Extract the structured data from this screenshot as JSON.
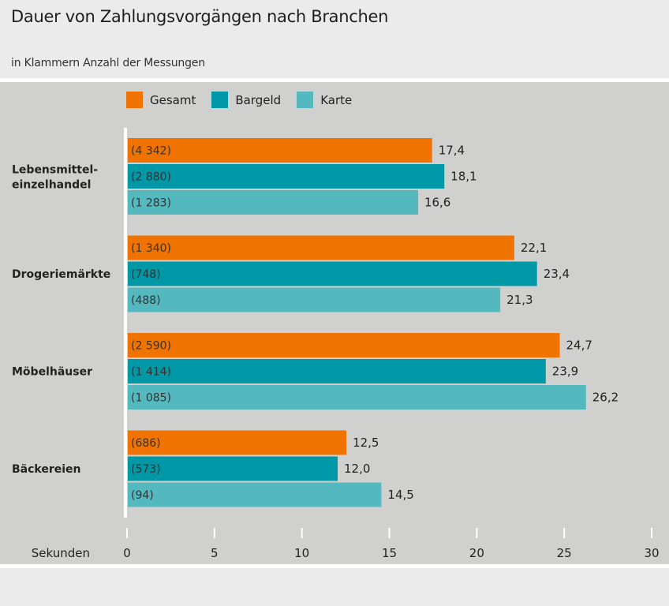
{
  "header": {
    "title": "Dauer von Zahlungsvorgängen nach Branchen",
    "subtitle": "in Klammern Anzahl der Messungen"
  },
  "colors": {
    "Gesamt": "#f07300",
    "Bargeld": "#0097a7",
    "Karte": "#54b8bf",
    "panel": "#d0d0cf",
    "background": "#ebebeb"
  },
  "chart_data": {
    "type": "bar",
    "orientation": "horizontal",
    "title": "Dauer von Zahlungsvorgängen nach Branchen",
    "subtitle": "in Klammern Anzahl der Messungen",
    "xlabel": "Sekunden",
    "ylabel": "",
    "xlim": [
      0,
      30
    ],
    "xticks": [
      0,
      5,
      10,
      15,
      20,
      25,
      30
    ],
    "xtick_labels": [
      "0",
      "5",
      "10",
      "15",
      "20",
      "25",
      "30"
    ],
    "grid": false,
    "legend_position": "top-left",
    "categories": [
      "Lebensmittel-\neinzelhandel",
      "Drogeriemärkte",
      "Möbelhäuser",
      "Bäckereien"
    ],
    "series": [
      {
        "name": "Gesamt",
        "values": [
          17.4,
          22.1,
          24.7,
          12.5
        ],
        "value_labels": [
          "17,4",
          "22,1",
          "24,7",
          "12,5"
        ],
        "counts": [
          "(4 342)",
          "(1 340)",
          "(2 590)",
          "(686)"
        ]
      },
      {
        "name": "Bargeld",
        "values": [
          18.1,
          23.4,
          23.9,
          12.0
        ],
        "value_labels": [
          "18,1",
          "23,4",
          "23,9",
          "12,0"
        ],
        "counts": [
          "(2 880)",
          "(748)",
          "(1 414)",
          "(573)"
        ]
      },
      {
        "name": "Karte",
        "values": [
          16.6,
          21.3,
          26.2,
          14.5
        ],
        "value_labels": [
          "16,6",
          "21,3",
          "26,2",
          "14,5"
        ],
        "counts": [
          "(1 283)",
          "(488)",
          "(1 085)",
          "(94)"
        ]
      }
    ]
  }
}
